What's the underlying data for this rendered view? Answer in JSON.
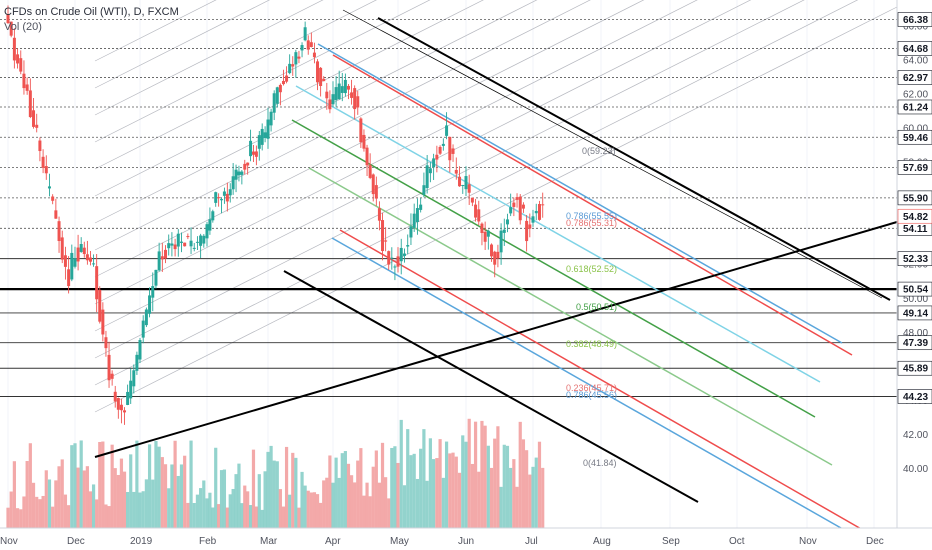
{
  "header": {
    "title": "CFDs on Crude Oil (WTI), D, FXCM",
    "volume_label": "Vol (20)"
  },
  "chart_data": {
    "type": "candlestick",
    "title": "CFDs on Crude Oil (WTI), D, FXCM",
    "ylim": [
      38.2,
      67.2
    ],
    "y_ticks": [
      40.0,
      42.0,
      44.0,
      46.0,
      48.0,
      50.0,
      52.0,
      54.0,
      56.0,
      58.0,
      60.0,
      62.0,
      64.0,
      66.0
    ],
    "x_ticks": [
      "Nov",
      "Dec",
      "2019",
      "Feb",
      "Mar",
      "Apr",
      "May",
      "Jun",
      "Jul",
      "Aug",
      "Sep",
      "Oct",
      "Nov",
      "Dec"
    ],
    "price_levels": [
      {
        "label": "66.38",
        "value": 66.38,
        "style": "dotted"
      },
      {
        "label": "64.68",
        "value": 64.68,
        "style": "dotted"
      },
      {
        "label": "62.97",
        "value": 62.97,
        "style": "dotted"
      },
      {
        "label": "61.24",
        "value": 61.24,
        "style": "dotted"
      },
      {
        "label": "59.46",
        "value": 59.46,
        "style": "dotted"
      },
      {
        "label": "57.69",
        "value": 57.69,
        "style": "dotted"
      },
      {
        "label": "55.90",
        "value": 55.9,
        "style": "dotted"
      },
      {
        "label": "54.11",
        "value": 54.11,
        "style": "dotted"
      },
      {
        "label": "52.33",
        "value": 52.33,
        "style": "solid"
      },
      {
        "label": "50.54",
        "value": 50.54,
        "style": "bold"
      },
      {
        "label": "49.14",
        "value": 49.14,
        "style": "solid"
      },
      {
        "label": "47.39",
        "value": 47.39,
        "style": "solid"
      },
      {
        "label": "45.89",
        "value": 45.89,
        "style": "solid"
      },
      {
        "label": "44.23",
        "value": 44.23,
        "style": "solid"
      }
    ],
    "last_price": {
      "label": "54.82",
      "value": 54.82,
      "color": "#ef5350"
    },
    "fib_labels": [
      {
        "text": "0(59.23)",
        "color": "#787b86"
      },
      {
        "text": "0.786(55.55)",
        "color": "#5b9bd5"
      },
      {
        "text": "0.786(55.31)",
        "color": "#e57373"
      },
      {
        "text": "0.618(52.52)",
        "color": "#8bc34a"
      },
      {
        "text": "0.5(50.51)",
        "color": "#43a047"
      },
      {
        "text": "0.382(48.49)",
        "color": "#8bc34a"
      },
      {
        "text": "0.236(45.71)",
        "color": "#e57373"
      },
      {
        "text": "0.786(45.56)",
        "color": "#5b9bd5"
      },
      {
        "text": "0(41.84)",
        "color": "#787b86"
      }
    ],
    "anchors": [
      {
        "month": 0.0,
        "price": 66.5
      },
      {
        "month": 0.1,
        "price": 64.5
      },
      {
        "month": 0.3,
        "price": 62.0
      },
      {
        "month": 0.5,
        "price": 58.0
      },
      {
        "month": 0.7,
        "price": 54.5
      },
      {
        "month": 0.9,
        "price": 51.0
      },
      {
        "month": 1.0,
        "price": 53.0
      },
      {
        "month": 1.15,
        "price": 52.5
      },
      {
        "month": 1.3,
        "price": 51.5
      },
      {
        "month": 1.45,
        "price": 47.0
      },
      {
        "month": 1.6,
        "price": 44.0
      },
      {
        "month": 1.75,
        "price": 43.5
      },
      {
        "month": 1.9,
        "price": 45.5
      },
      {
        "month": 2.05,
        "price": 48.5
      },
      {
        "month": 2.3,
        "price": 52.5
      },
      {
        "month": 2.6,
        "price": 53.5
      },
      {
        "month": 2.9,
        "price": 53.0
      },
      {
        "month": 3.1,
        "price": 55.5
      },
      {
        "month": 3.4,
        "price": 56.5
      },
      {
        "month": 3.7,
        "price": 58.5
      },
      {
        "month": 3.95,
        "price": 59.5
      },
      {
        "month": 4.15,
        "price": 62.5
      },
      {
        "month": 4.4,
        "price": 64.0
      },
      {
        "month": 4.6,
        "price": 65.5
      },
      {
        "month": 4.75,
        "price": 63.5
      },
      {
        "month": 4.9,
        "price": 61.5
      },
      {
        "month": 5.1,
        "price": 62.0
      },
      {
        "month": 5.3,
        "price": 62.5
      },
      {
        "month": 5.45,
        "price": 59.0
      },
      {
        "month": 5.6,
        "price": 57.0
      },
      {
        "month": 5.75,
        "price": 53.5
      },
      {
        "month": 5.9,
        "price": 52.0
      },
      {
        "month": 6.05,
        "price": 52.5
      },
      {
        "month": 6.2,
        "price": 54.0
      },
      {
        "month": 6.4,
        "price": 57.0
      },
      {
        "month": 6.55,
        "price": 58.5
      },
      {
        "month": 6.7,
        "price": 60.0
      },
      {
        "month": 6.85,
        "price": 57.0
      },
      {
        "month": 7.0,
        "price": 56.5
      },
      {
        "month": 7.15,
        "price": 55.0
      },
      {
        "month": 7.3,
        "price": 53.5
      },
      {
        "month": 7.45,
        "price": 52.5
      },
      {
        "month": 7.6,
        "price": 55.0
      },
      {
        "month": 7.75,
        "price": 56.0
      },
      {
        "month": 7.9,
        "price": 54.0
      },
      {
        "month": 8.05,
        "price": 55.5
      },
      {
        "month": 8.15,
        "price": 55.0
      }
    ],
    "volume": {
      "label": "Vol (20)"
    },
    "colors": {
      "up": "#26a69a",
      "down": "#ef5350",
      "volume_up": "#80cbc4",
      "volume_down": "#f19a9a",
      "red_channel": "#ef4c4c",
      "blue_channel": "#5aa6dc",
      "cyan_channel": "#7fd3e6",
      "green_channel": "#43a047",
      "lightgreen_channel": "#8bc98b",
      "black_line": "#000000",
      "grey_fan": "#b7b9c0"
    }
  }
}
